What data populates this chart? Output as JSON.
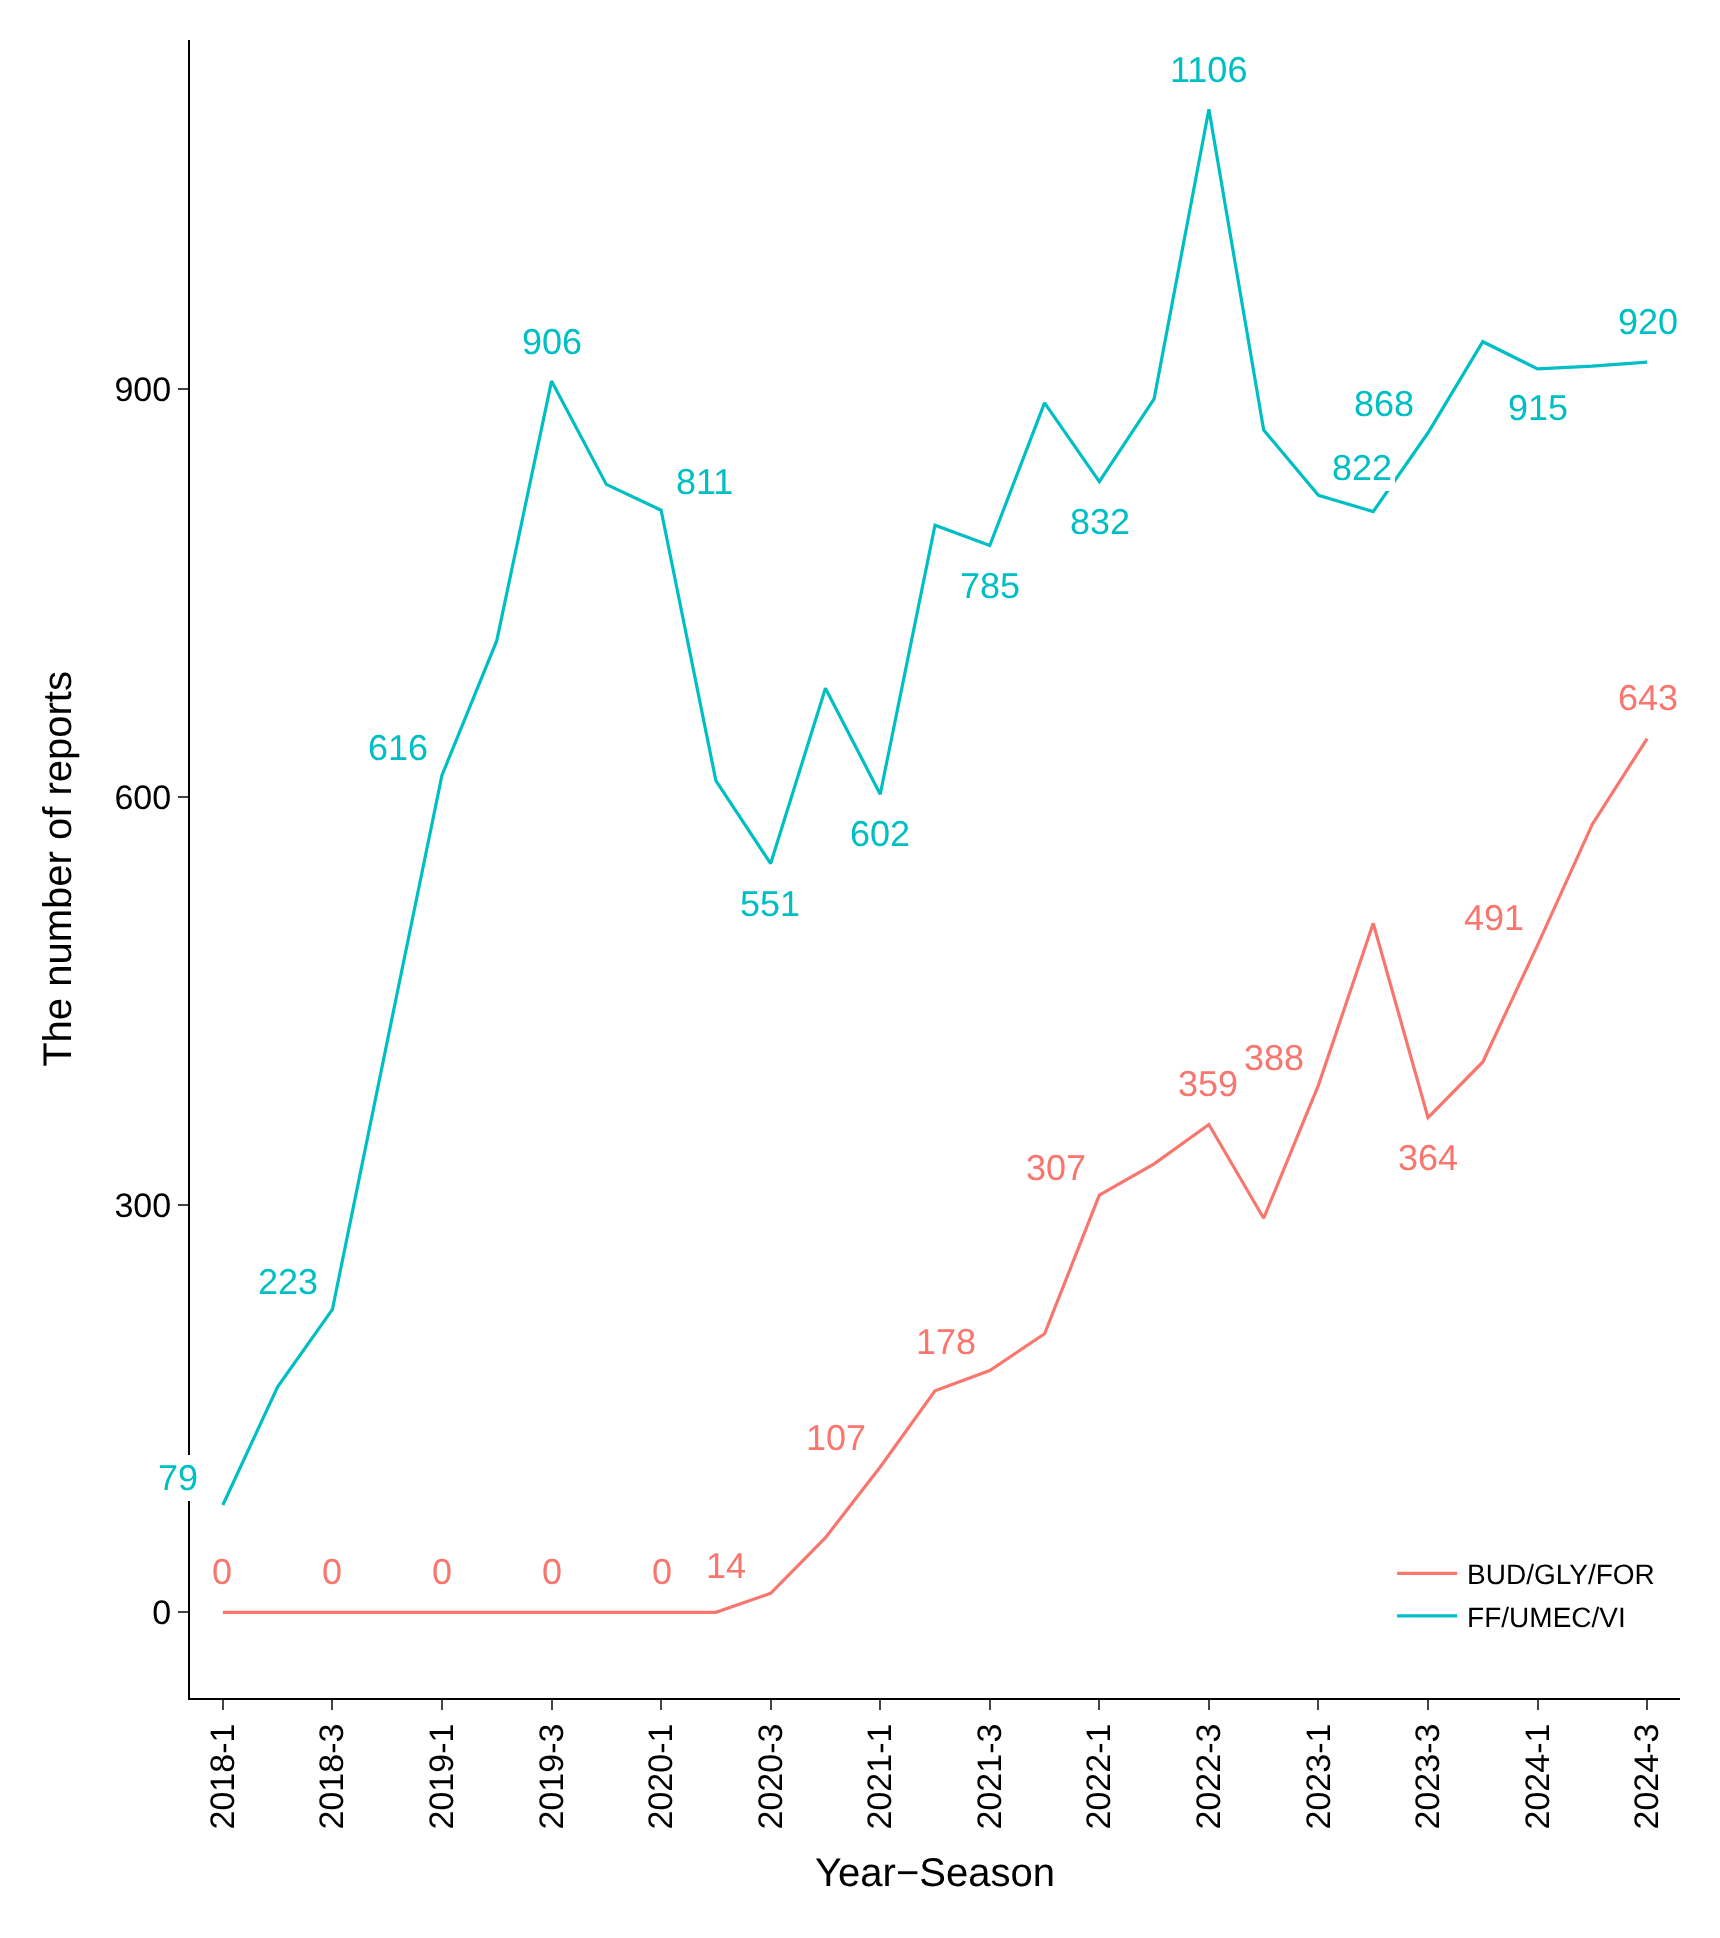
{
  "chart_data": {
    "type": "line",
    "xlabel": "Year−Season",
    "ylabel": "The number of reports",
    "categories": [
      "2018-1",
      null,
      "2018-3",
      null,
      "2019-1",
      null,
      "2019-3",
      null,
      "2020-1",
      null,
      "2020-3",
      null,
      "2021-1",
      null,
      "2021-3",
      null,
      "2022-1",
      null,
      "2022-3",
      null,
      "2023-1",
      null,
      "2023-3",
      null,
      "2024-1",
      null,
      "2024-3"
    ],
    "series": [
      {
        "name": "BUD/GLY/FOR",
        "color": "#f8766d",
        "values": [
          0,
          0,
          0,
          0,
          0,
          0,
          0,
          0,
          0,
          0,
          14,
          55,
          107,
          163,
          178,
          205,
          307,
          330,
          359,
          290,
          388,
          507,
          364,
          405,
          491,
          580,
          643
        ],
        "value_labels": [
          "0",
          null,
          "0",
          null,
          "0",
          null,
          "0",
          null,
          "0",
          null,
          "14",
          null,
          "107",
          null,
          "178",
          null,
          "307",
          null,
          "359",
          null,
          "388",
          null,
          "364",
          null,
          "491",
          null,
          "643"
        ]
      },
      {
        "name": "FF/UMEC/VI",
        "color": "#00bfc4",
        "values": [
          79,
          166,
          223,
          420,
          616,
          715,
          906,
          830,
          811,
          612,
          551,
          680,
          602,
          800,
          785,
          890,
          832,
          893,
          1106,
          870,
          822,
          810,
          868,
          935,
          915,
          917,
          920
        ],
        "value_labels": [
          "79",
          null,
          "223",
          null,
          "616",
          null,
          "906",
          null,
          "811",
          null,
          "551",
          null,
          "602",
          null,
          "785",
          null,
          "832",
          null,
          "1106",
          null,
          "822",
          null,
          "868",
          null,
          "915",
          null,
          "920"
        ]
      }
    ],
    "ylim": [
      -63,
      1157
    ],
    "yticks": [
      0,
      300,
      600,
      900
    ],
    "legend": "bottom right",
    "marker": "none",
    "line_style": "solid"
  }
}
